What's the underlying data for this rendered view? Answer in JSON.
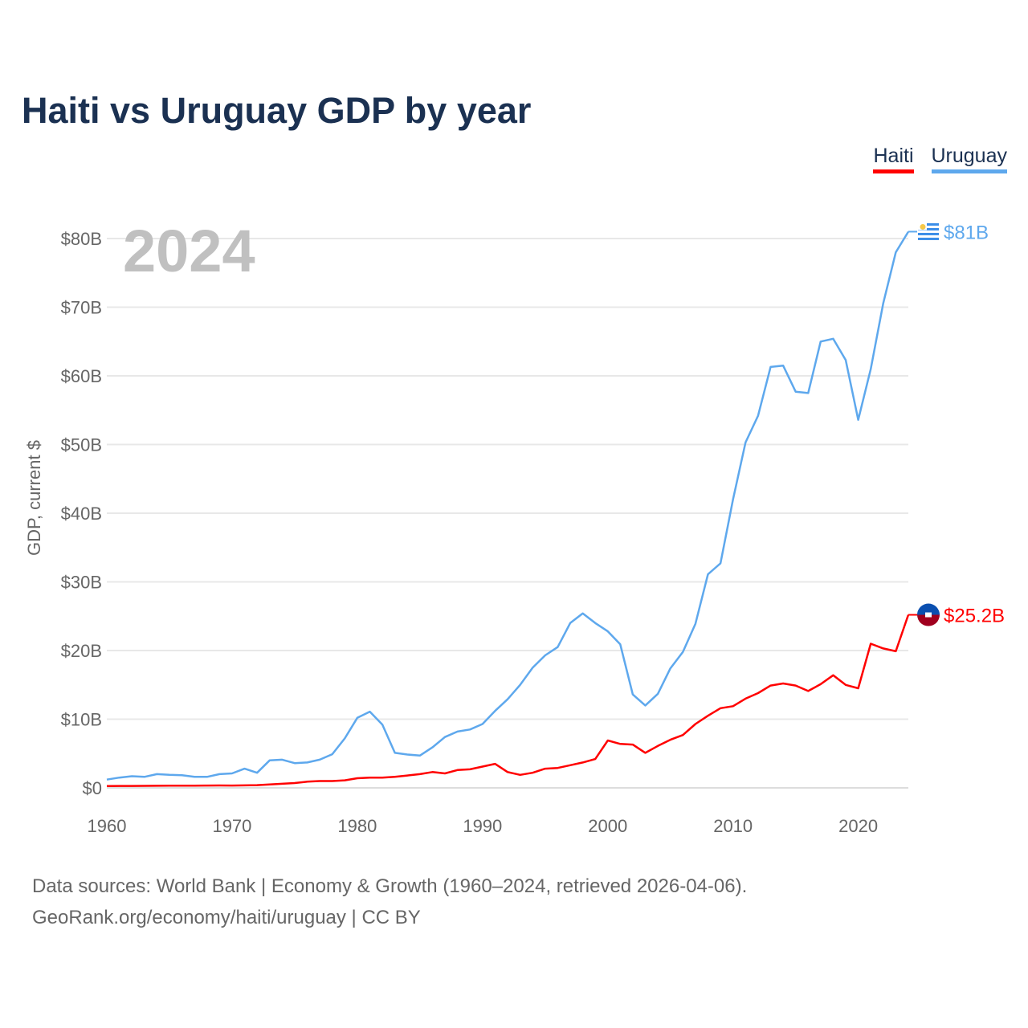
{
  "chart_data": {
    "type": "line",
    "title": "Haiti vs Uruguay GDP by year",
    "ylabel": "GDP, current $",
    "xlabel": "",
    "year_label": "2024",
    "xlim": [
      1960,
      2024
    ],
    "ylim": [
      0,
      80
    ],
    "x_ticks": [
      1960,
      1970,
      1980,
      1990,
      2000,
      2010,
      2020
    ],
    "y_ticks": [
      0,
      10,
      20,
      30,
      40,
      50,
      60,
      70,
      80
    ],
    "y_tick_labels": [
      "$0",
      "$10B",
      "$20B",
      "$30B",
      "$40B",
      "$50B",
      "$60B",
      "$70B",
      "$80B"
    ],
    "grid": true,
    "legend_position": "top-right",
    "x": [
      1960,
      1961,
      1962,
      1963,
      1964,
      1965,
      1966,
      1967,
      1968,
      1969,
      1970,
      1971,
      1972,
      1973,
      1974,
      1975,
      1976,
      1977,
      1978,
      1979,
      1980,
      1981,
      1982,
      1983,
      1984,
      1985,
      1986,
      1987,
      1988,
      1989,
      1990,
      1991,
      1992,
      1993,
      1994,
      1995,
      1996,
      1997,
      1998,
      1999,
      2000,
      2001,
      2002,
      2003,
      2004,
      2005,
      2006,
      2007,
      2008,
      2009,
      2010,
      2011,
      2012,
      2013,
      2014,
      2015,
      2016,
      2017,
      2018,
      2019,
      2020,
      2021,
      2022,
      2023,
      2024
    ],
    "series": [
      {
        "name": "Haiti",
        "color": "#ff0000",
        "end_label": "$25.2B",
        "values": [
          0.27,
          0.28,
          0.28,
          0.29,
          0.3,
          0.32,
          0.33,
          0.33,
          0.34,
          0.35,
          0.34,
          0.36,
          0.4,
          0.5,
          0.6,
          0.7,
          0.9,
          1.0,
          1.0,
          1.1,
          1.4,
          1.5,
          1.5,
          1.6,
          1.8,
          2.0,
          2.3,
          2.1,
          2.6,
          2.7,
          3.1,
          3.5,
          2.3,
          1.9,
          2.2,
          2.8,
          2.9,
          3.3,
          3.7,
          4.2,
          6.9,
          6.4,
          6.3,
          5.1,
          6.1,
          7.0,
          7.7,
          9.3,
          10.5,
          11.6,
          11.9,
          13.0,
          13.8,
          14.9,
          15.2,
          14.9,
          14.1,
          15.1,
          16.4,
          15.0,
          14.5,
          21.0,
          20.3,
          19.9,
          25.2
        ]
      },
      {
        "name": "Uruguay",
        "color": "#5ea8ed",
        "end_label": "$81B",
        "values": [
          1.2,
          1.5,
          1.7,
          1.6,
          2.0,
          1.9,
          1.85,
          1.6,
          1.6,
          2.0,
          2.1,
          2.8,
          2.2,
          4.0,
          4.1,
          3.6,
          3.7,
          4.1,
          4.9,
          7.2,
          10.2,
          11.1,
          9.2,
          5.1,
          4.85,
          4.7,
          5.9,
          7.4,
          8.2,
          8.5,
          9.3,
          11.2,
          12.9,
          15.0,
          17.5,
          19.3,
          20.5,
          24.0,
          25.4,
          24.0,
          22.8,
          20.9,
          13.6,
          12.0,
          13.7,
          17.4,
          19.8,
          23.9,
          31.1,
          32.7,
          42.0,
          50.3,
          54.2,
          61.3,
          61.5,
          57.7,
          57.5,
          65.0,
          65.4,
          62.3,
          53.6,
          61.0,
          70.6,
          78.0,
          81.0
        ]
      }
    ]
  },
  "footer": {
    "line1": "Data sources: World Bank | Economy & Growth (1960–2024, retrieved 2026-04-06).",
    "line2": "GeoRank.org/economy/haiti/uruguay | CC BY"
  }
}
